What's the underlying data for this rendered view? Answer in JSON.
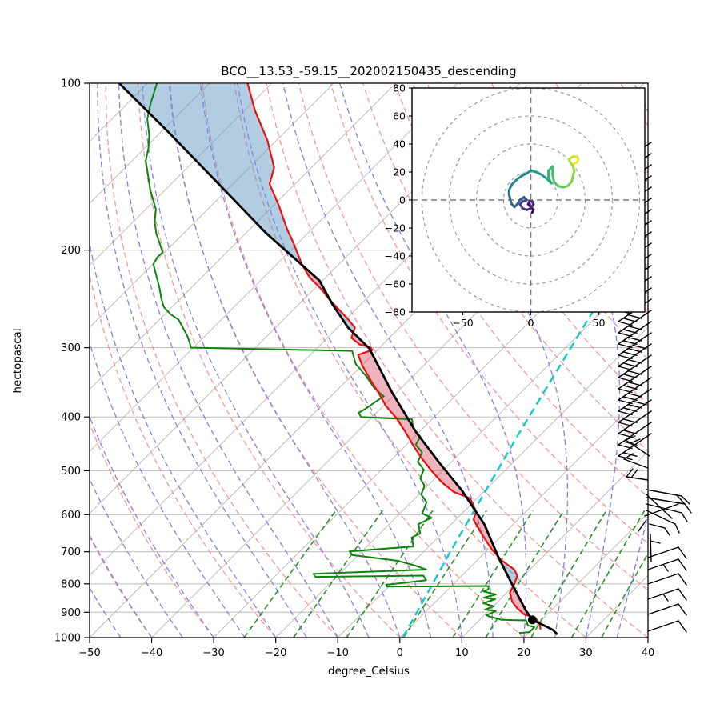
{
  "chart_data": {
    "type": "skewt_log_p_sounding",
    "title": "BCO__13.53_-59.15__202002150435_descending",
    "main_chart": {
      "xlabel": "degree_Celsius",
      "ylabel": "hectopascal",
      "xlim": [
        -50,
        40
      ],
      "pressure_lim": [
        100,
        1000
      ],
      "x_ticks": [
        -50,
        -40,
        -30,
        -20,
        -10,
        0,
        10,
        20,
        30,
        40
      ],
      "y_ticks": [
        100,
        200,
        300,
        400,
        500,
        600,
        700,
        800,
        900,
        1000
      ],
      "skew_isotherm_angle_deg": 45,
      "background": {
        "isotherms": {
          "start": -150,
          "end": 40,
          "step": 10
        },
        "dry_adiabats_theta": {
          "start": -40,
          "end": 200,
          "step": 10
        },
        "moist_adiabats_t0": {
          "start": -60,
          "end": 40,
          "step": 5
        },
        "mixing_ratios_g_kg": [
          0.5,
          1,
          2,
          4,
          7,
          10,
          16,
          24,
          32
        ],
        "mixing_ratio_top_p": 590
      },
      "profiles": {
        "temperature": [
          [
            100,
            -113.9
          ],
          [
            112,
            -108.3
          ],
          [
            127,
            -101.4
          ],
          [
            142,
            -96.0
          ],
          [
            152,
            -94.1
          ],
          [
            166,
            -89.2
          ],
          [
            184,
            -83.8
          ],
          [
            194,
            -80.8
          ],
          [
            212,
            -76.0
          ],
          [
            224,
            -72.6
          ],
          [
            234,
            -69.2
          ],
          [
            246,
            -65.7
          ],
          [
            257,
            -62.4
          ],
          [
            266,
            -59.8
          ],
          [
            276,
            -57.2
          ],
          [
            288,
            -56.1
          ],
          [
            296,
            -53.7
          ],
          [
            300,
            -51.4
          ],
          [
            303,
            -50.8
          ],
          [
            309,
            -52.3
          ],
          [
            323,
            -49.9
          ],
          [
            340,
            -46.8
          ],
          [
            361,
            -43.0
          ],
          [
            382,
            -39.6
          ],
          [
            402,
            -35.9
          ],
          [
            426,
            -32.2
          ],
          [
            451,
            -28.7
          ],
          [
            474,
            -25.5
          ],
          [
            500,
            -21.8
          ],
          [
            525,
            -18.2
          ],
          [
            546,
            -14.8
          ],
          [
            555,
            -12.5
          ],
          [
            561,
            -11.1
          ],
          [
            593,
            -8.0
          ],
          [
            613,
            -7.1
          ],
          [
            641,
            -4.4
          ],
          [
            671,
            -1.5
          ],
          [
            694,
            0.7
          ],
          [
            725,
            3.9
          ],
          [
            754,
            7.5
          ],
          [
            774,
            9.0
          ],
          [
            800,
            9.8
          ],
          [
            830,
            10.5
          ],
          [
            861,
            12.3
          ],
          [
            884,
            14.1
          ],
          [
            908,
            16.3
          ],
          [
            914,
            17.4
          ],
          [
            926,
            19.0
          ],
          [
            941,
            20.1
          ],
          [
            967,
            21.4
          ]
        ],
        "dewpoint": [
          [
            100,
            -128.5
          ],
          [
            109,
            -126.2
          ],
          [
            116,
            -124.3
          ],
          [
            124,
            -121.4
          ],
          [
            131,
            -119.4
          ],
          [
            138,
            -117.8
          ],
          [
            156,
            -112.3
          ],
          [
            164,
            -109.8
          ],
          [
            169,
            -108.3
          ],
          [
            178,
            -106.5
          ],
          [
            187,
            -104.3
          ],
          [
            195,
            -102.1
          ],
          [
            202,
            -100.3
          ],
          [
            206,
            -100.4
          ],
          [
            212,
            -99.9
          ],
          [
            234,
            -95.1
          ],
          [
            244,
            -93.2
          ],
          [
            253,
            -91.4
          ],
          [
            261,
            -89.1
          ],
          [
            267,
            -86.9
          ],
          [
            277,
            -84.7
          ],
          [
            286,
            -82.8
          ],
          [
            295,
            -81.2
          ],
          [
            300,
            -80.4
          ],
          [
            304,
            -53.9
          ],
          [
            321,
            -51.2
          ],
          [
            337,
            -47.7
          ],
          [
            355,
            -44.3
          ],
          [
            367,
            -41.5
          ],
          [
            388,
            -42.5
          ],
          [
            393,
            -42.9
          ],
          [
            400,
            -41.8
          ],
          [
            402,
            -37.5
          ],
          [
            404,
            -33.2
          ],
          [
            419,
            -31.6
          ],
          [
            434,
            -29.1
          ],
          [
            449,
            -28.5
          ],
          [
            463,
            -26.3
          ],
          [
            482,
            -25.4
          ],
          [
            498,
            -23.2
          ],
          [
            516,
            -22.4
          ],
          [
            532,
            -20.5
          ],
          [
            552,
            -19.6
          ],
          [
            570,
            -17.5
          ],
          [
            597,
            -16.4
          ],
          [
            608,
            -14.2
          ],
          [
            624,
            -15.3
          ],
          [
            649,
            -13.5
          ],
          [
            660,
            -14.2
          ],
          [
            685,
            -12.5
          ],
          [
            699,
            -22.0
          ],
          [
            710,
            -20.9
          ],
          [
            727,
            -12.7
          ],
          [
            742,
            -9.0
          ],
          [
            754,
            -6.7
          ],
          [
            767,
            -24.2
          ],
          [
            777,
            -23.4
          ],
          [
            773,
            -6.2
          ],
          [
            788,
            -5.0
          ],
          [
            803,
            -10.7
          ],
          [
            809,
            -10.3
          ],
          [
            807,
            6.0
          ],
          [
            819,
            6.5
          ],
          [
            825,
            6.0
          ],
          [
            836,
            8.5
          ],
          [
            847,
            7.1
          ],
          [
            853,
            9.2
          ],
          [
            867,
            7.9
          ],
          [
            878,
            10.1
          ],
          [
            890,
            9.2
          ],
          [
            896,
            11.2
          ],
          [
            911,
            10.3
          ],
          [
            917,
            11.2
          ],
          [
            929,
            13.6
          ],
          [
            931,
            17.6
          ],
          [
            951,
            18.7
          ],
          [
            957,
            20.0
          ],
          [
            977,
            20.0
          ],
          [
            981,
            18.5
          ]
        ],
        "parcel": [
          [
            100,
            -134.6
          ],
          [
            122,
            -119.1
          ],
          [
            152,
            -102.3
          ],
          [
            186,
            -86.9
          ],
          [
            227,
            -70.5
          ],
          [
            250,
            -64.7
          ],
          [
            276,
            -58.3
          ],
          [
            301,
            -51.5
          ],
          [
            361,
            -40.8
          ],
          [
            426,
            -30.5
          ],
          [
            486,
            -21.5
          ],
          [
            542,
            -13.8
          ],
          [
            624,
            -4.7
          ],
          [
            717,
            3.0
          ],
          [
            800,
            9.4
          ],
          [
            893,
            15.9
          ],
          [
            929,
            18.5
          ],
          [
            951,
            21.3
          ],
          [
            968,
            23.4
          ],
          [
            987,
            24.9
          ]
        ],
        "surface_point": {
          "p": 929,
          "t": 18.5
        },
        "special_moist_adiabat": [
          [
            1000,
            0.5
          ],
          [
            700,
            -5.7
          ],
          [
            426,
            -13.8
          ],
          [
            305,
            -18.9
          ],
          [
            176,
            -27.3
          ]
        ]
      },
      "wind_barbs": {
        "upper": {
          "y_start": 180,
          "count": 27,
          "step": 14
        },
        "lower_ys": [
          697,
          712,
          730,
          749,
          768,
          789
        ],
        "knot_segments": [
          [
            808,
            612,
            852,
            620
          ],
          [
            852,
            620,
            862,
            630
          ],
          [
            846,
            619,
            855,
            629
          ],
          [
            808,
            622,
            856,
            630
          ],
          [
            856,
            630,
            864,
            641
          ],
          [
            808,
            630,
            852,
            641
          ],
          [
            852,
            641,
            859,
            652
          ],
          [
            808,
            638,
            844,
            655
          ],
          [
            844,
            655,
            849,
            666
          ],
          [
            808,
            618,
            840,
            648
          ],
          [
            806,
            645,
            848,
            630
          ],
          [
            810,
            600,
            783,
            596
          ],
          [
            783,
            596,
            791,
            586
          ],
          [
            789,
            597,
            797,
            587
          ],
          [
            810,
            585,
            780,
            574
          ],
          [
            780,
            574,
            791,
            567
          ],
          [
            812,
            570,
            782,
            550
          ],
          [
            782,
            550,
            794,
            545
          ],
          [
            788,
            554,
            800,
            549
          ],
          [
            814,
            702,
            813,
            668
          ],
          [
            813,
            676,
            825,
            679
          ],
          [
            808,
            650,
            798,
            664
          ],
          [
            812,
            655,
            831,
            660
          ],
          [
            831,
            660,
            837,
            669
          ]
        ]
      },
      "colors": {
        "temperature": "#e81010",
        "dewpoint": "#0d850d",
        "parcel": "#000000",
        "cape_shade": "rgba(215,75,95,0.42)",
        "cin_shade": "rgba(95,150,195,0.48)",
        "isotherm": "#c3bbb3",
        "pressure_grid": "#bbbbbb",
        "dry_adiabat": "#f29898",
        "moist_adiabat": "#8282e2",
        "mixing_ratio": "#2e8f2e",
        "special_adiabat": "#12c9c9",
        "barb": "#000000"
      }
    },
    "hodograph": {
      "xlim": [
        -85,
        85
      ],
      "ylim": [
        -80,
        80
      ],
      "x_ticks": [
        -50,
        0,
        50
      ],
      "y_ticks": [
        80,
        60,
        40,
        20,
        0,
        -20,
        -40,
        -60,
        -80
      ],
      "rings": [
        20,
        40,
        60,
        80
      ],
      "trail_colormap": "viridis",
      "trail": [
        [
          1,
          -9
        ],
        [
          2,
          -7
        ],
        [
          0,
          -5
        ],
        [
          -2,
          -3
        ],
        [
          -1,
          -1
        ],
        [
          1,
          -1
        ],
        [
          2,
          -3
        ],
        [
          0,
          -6
        ],
        [
          -3,
          -7
        ],
        [
          -6,
          -6
        ],
        [
          -8,
          -3
        ],
        [
          -6,
          -1
        ],
        [
          -3,
          0
        ],
        [
          -5,
          2
        ],
        [
          -8,
          0
        ],
        [
          -10,
          -3
        ],
        [
          -12,
          -5
        ],
        [
          -14,
          -3
        ],
        [
          -15,
          0
        ],
        [
          -16,
          4
        ],
        [
          -16,
          7
        ],
        [
          -14,
          11
        ],
        [
          -11,
          14
        ],
        [
          -7,
          17
        ],
        [
          -3,
          19
        ],
        [
          0,
          21
        ],
        [
          4,
          20
        ],
        [
          8,
          18
        ],
        [
          12,
          15
        ],
        [
          15,
          12
        ],
        [
          13,
          16
        ],
        [
          13,
          21
        ],
        [
          16,
          24
        ],
        [
          16,
          18
        ],
        [
          17,
          13
        ],
        [
          20,
          10
        ],
        [
          24,
          9
        ],
        [
          27,
          10
        ],
        [
          30,
          13
        ],
        [
          31,
          17
        ],
        [
          32,
          21
        ],
        [
          31,
          24
        ],
        [
          29,
          27
        ],
        [
          28,
          29
        ],
        [
          31,
          31
        ],
        [
          34,
          31
        ],
        [
          35,
          29
        ],
        [
          34,
          27
        ],
        [
          32,
          26
        ]
      ]
    }
  }
}
